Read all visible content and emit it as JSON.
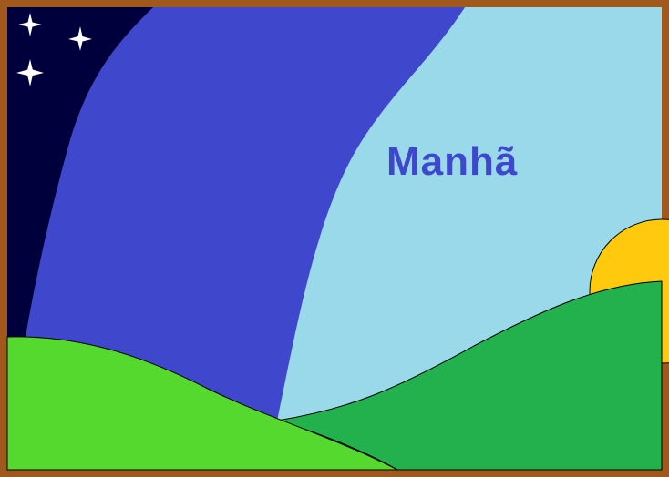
{
  "scene": {
    "title": "Manhã",
    "colors": {
      "border": "#a0581c",
      "night_sky": "#00003c",
      "dawn_sky": "#3f48cc",
      "morning_sky": "#99d9ea",
      "title_text": "#3f48cc",
      "sun": "#ffc90e",
      "hill_front": "#56d92e",
      "hill_back": "#22b14c",
      "stars": "#ffffff"
    },
    "icons": [
      "star-icon",
      "star-icon",
      "star-icon",
      "sun-icon"
    ]
  }
}
